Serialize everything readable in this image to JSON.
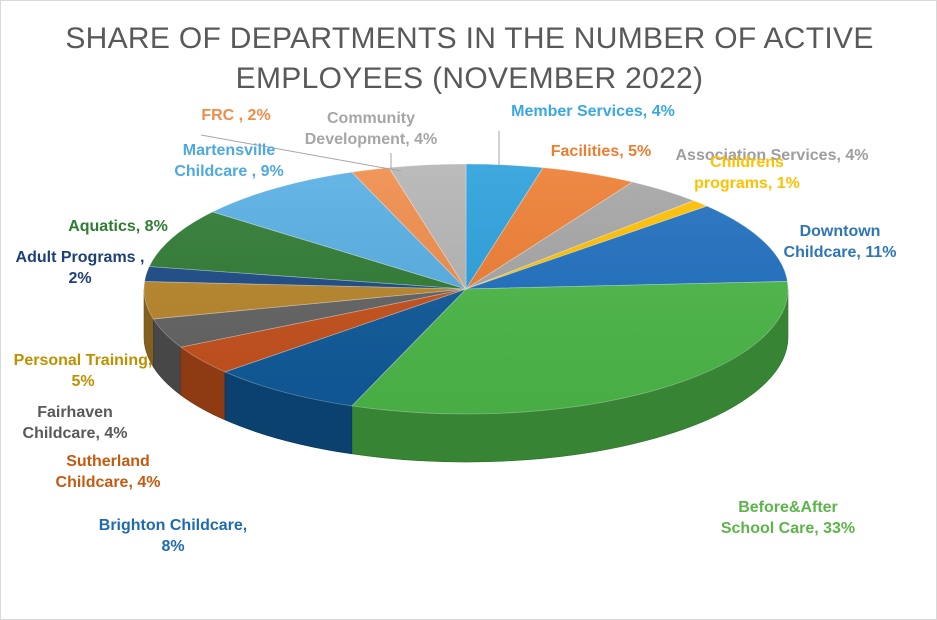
{
  "chart_data": {
    "type": "pie",
    "style": "3d",
    "title": [
      "SHARE OF DEPARTMENTS IN THE NUMBER OF ACTIVE",
      "EMPLOYEES (NOVEMBER 2022)"
    ],
    "slices": [
      {
        "name": "Member Services",
        "value": 4,
        "color": "#2aa0dc",
        "label": [
          "Member Services, 4%"
        ],
        "label_color": "#3aa8e2"
      },
      {
        "name": "Facilities",
        "value": 5,
        "color": "#ed7d31",
        "label": [
          "Facilities, 5%"
        ],
        "label_color": "#ed7d31"
      },
      {
        "name": "Association Services",
        "value": 4,
        "color": "#a5a5a5",
        "label": [
          "Association Services, 4%"
        ],
        "label_color": "#9e9e9e"
      },
      {
        "name": "Childrens programs",
        "value": 1,
        "color": "#ffc000",
        "label": [
          "Childrens",
          "programs, 1%"
        ],
        "label_color": "#ffc000"
      },
      {
        "name": "Downtown Childcare",
        "value": 11,
        "color": "#1e6fc0",
        "label": [
          "Downtown",
          "Childcare, 11%"
        ],
        "label_color": "#2e75b6"
      },
      {
        "name": "Before&After School Care",
        "value": 33,
        "color": "#4cb848",
        "label": [
          "Before&After",
          "School Care, 33%"
        ],
        "label_color": "#5cb54a"
      },
      {
        "name": "Brighton Childcare",
        "value": 8,
        "color": "#0f5a9a",
        "label": [
          "Brighton Childcare,",
          "8%"
        ],
        "label_color": "#1f6aaf"
      },
      {
        "name": "Sutherland Childcare",
        "value": 4,
        "color": "#c5501b",
        "label": [
          "Sutherland",
          "Childcare, 4%"
        ],
        "label_color": "#c55a11"
      },
      {
        "name": "Fairhaven Childcare",
        "value": 4,
        "color": "#636363",
        "label": [
          "Fairhaven",
          "Childcare, 4%"
        ],
        "label_color": "#595959"
      },
      {
        "name": "Personal Training",
        "value": 5,
        "color": "#b8862b",
        "label": [
          "Personal Training,",
          "5%"
        ],
        "label_color": "#bf9000"
      },
      {
        "name": "Adult Programs",
        "value": 2,
        "color": "#1a4a86",
        "label": [
          "Adult Programs ,",
          "2%"
        ],
        "label_color": "#1f3f77"
      },
      {
        "name": "Aquatics",
        "value": 8,
        "color": "#2e7a32",
        "label": [
          "Aquatics, 8%"
        ],
        "label_color": "#2e7d32"
      },
      {
        "name": "Martensville Childcare",
        "value": 9,
        "color": "#56aee4",
        "label": [
          "Martensville",
          "Childcare , 9%"
        ],
        "label_color": "#4ea9e0"
      },
      {
        "name": "FRC",
        "value": 2,
        "color": "#f08c4a",
        "label": [
          "FRC , 2%"
        ],
        "label_color": "#f08c4a"
      },
      {
        "name": "Community Development",
        "value": 4,
        "color": "#b4b4b4",
        "label": [
          "Community",
          "Development, 4%"
        ],
        "label_color": "#a6a6a6"
      }
    ]
  }
}
